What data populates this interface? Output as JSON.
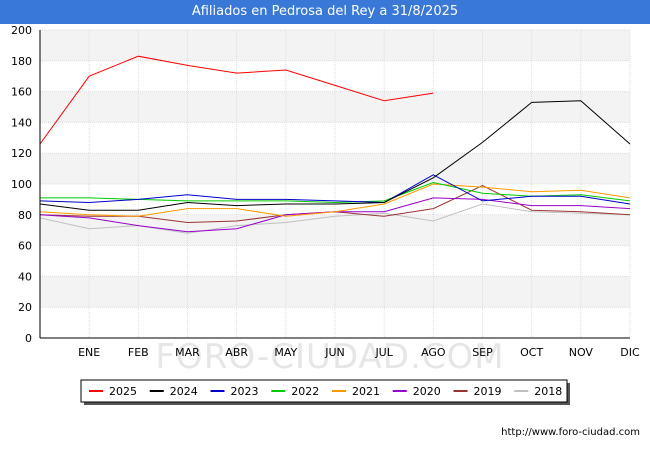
{
  "header": {
    "title": "Afiliados en Pedrosa del Rey a 31/8/2025"
  },
  "footer": {
    "url": "http://www.foro-ciudad.com"
  },
  "watermark": "FORO-CIUDAD.COM",
  "chart_data": {
    "type": "line",
    "title": "Afiliados en Pedrosa del Rey a 31/8/2025",
    "categories": [
      "",
      "ENE",
      "FEB",
      "MAR",
      "ABR",
      "MAY",
      "JUN",
      "JUL",
      "AGO",
      "SEP",
      "OCT",
      "NOV",
      "DIC"
    ],
    "ylim": [
      0,
      200
    ],
    "yticks": [
      0,
      20,
      40,
      60,
      80,
      100,
      120,
      140,
      160,
      180,
      200
    ],
    "grid": true,
    "legend_position": "bottom",
    "series": [
      {
        "name": "2025",
        "color": "#ff0000",
        "values": [
          126,
          170,
          183,
          177,
          172,
          174,
          164,
          154,
          159,
          null,
          null,
          null,
          null
        ]
      },
      {
        "name": "2024",
        "color": "#000000",
        "values": [
          87,
          83,
          83,
          88,
          86,
          87,
          87,
          88,
          104,
          127,
          153,
          154,
          126
        ]
      },
      {
        "name": "2023",
        "color": "#0000cc",
        "values": [
          89,
          88,
          90,
          93,
          90,
          90,
          89,
          88,
          106,
          89,
          92,
          92,
          87
        ]
      },
      {
        "name": "2022",
        "color": "#00cc00",
        "values": [
          91,
          91,
          90,
          89,
          89,
          89,
          88,
          89,
          101,
          94,
          92,
          93,
          89
        ]
      },
      {
        "name": "2021",
        "color": "#ff9900",
        "values": [
          82,
          80,
          79,
          84,
          84,
          79,
          82,
          87,
          100,
          98,
          95,
          96,
          91
        ]
      },
      {
        "name": "2020",
        "color": "#9900cc",
        "values": [
          80,
          78,
          73,
          69,
          71,
          80,
          82,
          82,
          91,
          90,
          86,
          86,
          84
        ]
      },
      {
        "name": "2019",
        "color": "#993333",
        "values": [
          80,
          79,
          79,
          75,
          76,
          80,
          82,
          79,
          84,
          99,
          83,
          82,
          80
        ]
      },
      {
        "name": "2018",
        "color": "#c0c0c0",
        "values": [
          78,
          71,
          73,
          68,
          73,
          75,
          79,
          81,
          76,
          87,
          82,
          81,
          80
        ]
      }
    ]
  }
}
